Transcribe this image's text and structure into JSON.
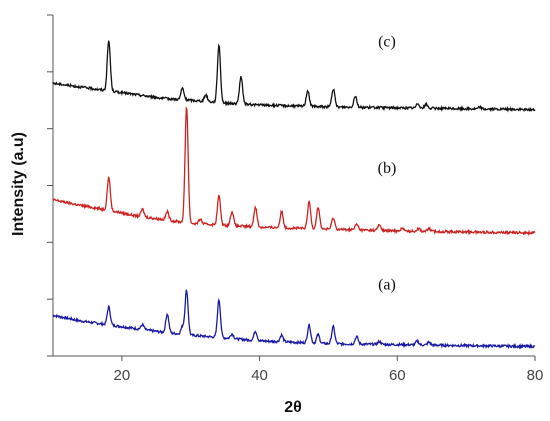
{
  "chart_data": {
    "type": "line",
    "title": "",
    "xlabel": "2θ",
    "ylabel": "Intensity (a.u)",
    "xlim": [
      10,
      80
    ],
    "ylim": [
      0,
      3.6
    ],
    "x_ticks": [
      20,
      40,
      60,
      80
    ],
    "y_ticks": [
      0.0,
      0.6,
      1.2,
      1.8,
      2.4,
      3.0,
      3.6
    ],
    "grid": false,
    "legend": "none",
    "baseline_offsets": {
      "a": 0.1,
      "b": 1.3,
      "c": 2.6
    },
    "series": [
      {
        "name": "(a)",
        "color": "#1a1aa6",
        "baseline": [
          [
            10,
            0.33
          ],
          [
            14,
            0.27
          ],
          [
            18,
            0.23
          ],
          [
            22,
            0.19
          ],
          [
            26,
            0.15
          ],
          [
            30,
            0.12
          ],
          [
            35,
            0.09
          ],
          [
            40,
            0.06
          ],
          [
            50,
            0.03
          ],
          [
            60,
            0.02
          ],
          [
            80,
            0.0
          ]
        ],
        "peaks": [
          [
            18.1,
            0.19
          ],
          [
            23.0,
            0.05
          ],
          [
            26.6,
            0.2
          ],
          [
            28.8,
            0.08
          ],
          [
            29.4,
            0.47
          ],
          [
            34.1,
            0.4
          ],
          [
            36.0,
            0.05
          ],
          [
            39.4,
            0.1
          ],
          [
            43.2,
            0.07
          ],
          [
            47.2,
            0.19
          ],
          [
            48.5,
            0.09
          ],
          [
            50.7,
            0.18
          ],
          [
            54.1,
            0.08
          ],
          [
            57.4,
            0.03
          ],
          [
            62.9,
            0.04
          ],
          [
            64.6,
            0.03
          ]
        ]
      },
      {
        "name": "(b)",
        "color": "#cc2222",
        "baseline": [
          [
            10,
            0.35
          ],
          [
            14,
            0.29
          ],
          [
            18,
            0.24
          ],
          [
            22,
            0.18
          ],
          [
            26,
            0.14
          ],
          [
            30,
            0.1
          ],
          [
            35,
            0.08
          ],
          [
            40,
            0.06
          ],
          [
            50,
            0.04
          ],
          [
            60,
            0.02
          ],
          [
            80,
            0.0
          ]
        ],
        "peaks": [
          [
            18.1,
            0.35
          ],
          [
            23.0,
            0.08
          ],
          [
            26.6,
            0.09
          ],
          [
            29.4,
            1.23
          ],
          [
            31.4,
            0.05
          ],
          [
            34.1,
            0.31
          ],
          [
            36.0,
            0.15
          ],
          [
            39.4,
            0.21
          ],
          [
            43.2,
            0.17
          ],
          [
            47.2,
            0.28
          ],
          [
            48.5,
            0.23
          ],
          [
            50.7,
            0.12
          ],
          [
            54.1,
            0.06
          ],
          [
            57.4,
            0.06
          ],
          [
            60.7,
            0.03
          ],
          [
            63.1,
            0.03
          ],
          [
            64.6,
            0.03
          ]
        ]
      },
      {
        "name": "(c)",
        "color": "#111111",
        "baseline": [
          [
            10,
            0.28
          ],
          [
            14,
            0.24
          ],
          [
            18,
            0.2
          ],
          [
            22,
            0.16
          ],
          [
            26,
            0.12
          ],
          [
            30,
            0.1
          ],
          [
            35,
            0.07
          ],
          [
            40,
            0.05
          ],
          [
            50,
            0.03
          ],
          [
            60,
            0.02
          ],
          [
            80,
            0.0
          ]
        ],
        "peaks": [
          [
            18.1,
            0.53
          ],
          [
            28.8,
            0.12
          ],
          [
            32.2,
            0.07
          ],
          [
            34.1,
            0.61
          ],
          [
            37.3,
            0.29
          ],
          [
            47.0,
            0.17
          ],
          [
            50.7,
            0.19
          ],
          [
            53.9,
            0.12
          ],
          [
            63.0,
            0.05
          ],
          [
            64.2,
            0.04
          ],
          [
            72.0,
            0.02
          ]
        ]
      }
    ],
    "annotations": [
      {
        "text": "(c)",
        "x": 58.5,
        "y": 3.27
      },
      {
        "text": "(b)",
        "x": 58.5,
        "y": 1.93
      },
      {
        "text": "(a)",
        "x": 58.5,
        "y": 0.7
      }
    ]
  }
}
